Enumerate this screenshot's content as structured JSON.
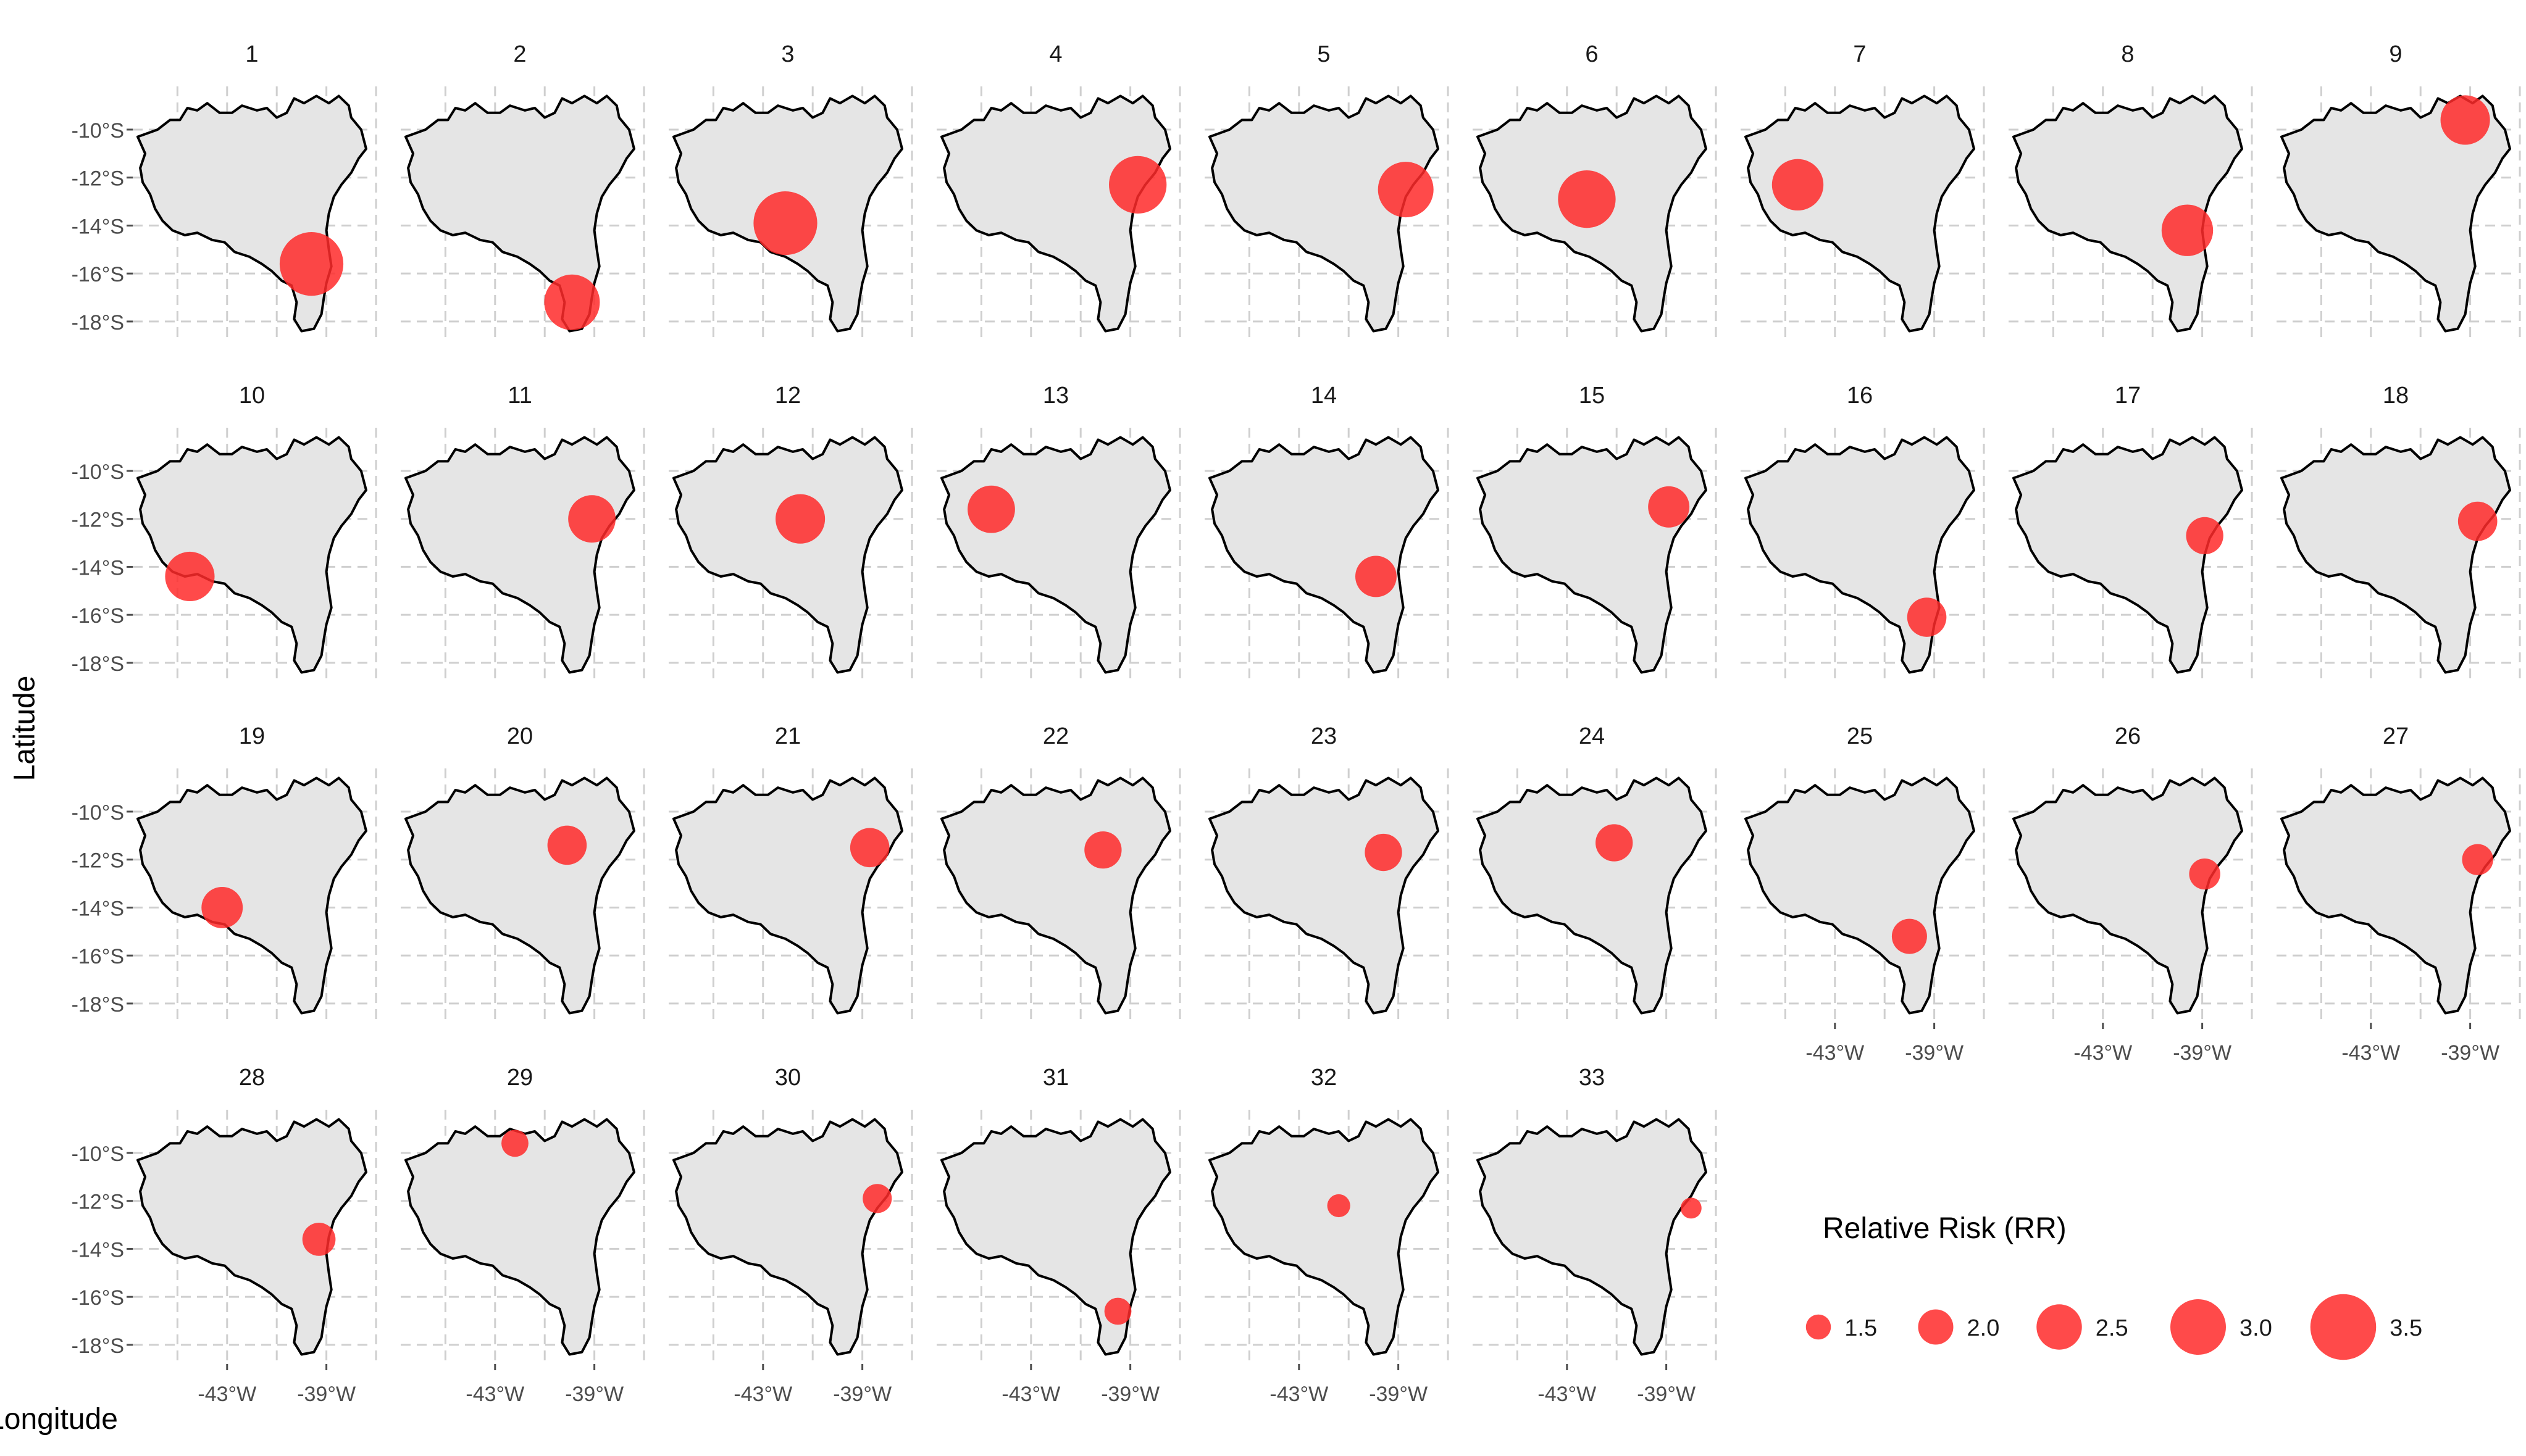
{
  "chart_data": {
    "type": "scatter",
    "subtype": "faceted bubble map",
    "xlabel": "Longitude",
    "ylabel": "Latitude",
    "x_ticks": [
      "-43°W",
      "-39°W"
    ],
    "y_ticks": [
      "-10°S",
      "-12°S",
      "-14°S",
      "-16°S",
      "-18°S"
    ],
    "xlim": [
      -46.8,
      -37.2
    ],
    "ylim": [
      -18.8,
      -8.2
    ],
    "grid": true,
    "point_color": "#ff2a2a",
    "map_fill": "#e5e5e5",
    "legend": {
      "title": "Relative Risk (RR)",
      "placement": "bottom-right",
      "values": [
        1.5,
        2.0,
        2.5,
        3.0,
        3.5
      ],
      "labels": [
        "1.5",
        "2.0",
        "2.5",
        "3.0",
        "3.5"
      ]
    },
    "panels": [
      {
        "label": "1",
        "lon": -39.6,
        "lat": -15.6,
        "rr": 3.4
      },
      {
        "label": "2",
        "lon": -39.9,
        "lat": -17.2,
        "rr": 3.0
      },
      {
        "label": "3",
        "lon": -42.1,
        "lat": -13.9,
        "rr": 3.4
      },
      {
        "label": "4",
        "lon": -38.7,
        "lat": -12.3,
        "rr": 3.1
      },
      {
        "label": "5",
        "lon": -38.7,
        "lat": -12.5,
        "rr": 3.0
      },
      {
        "label": "6",
        "lon": -42.2,
        "lat": -12.9,
        "rr": 3.1
      },
      {
        "label": "7",
        "lon": -44.5,
        "lat": -12.3,
        "rr": 2.8
      },
      {
        "label": "8",
        "lon": -39.6,
        "lat": -14.2,
        "rr": 2.8
      },
      {
        "label": "9",
        "lon": -39.2,
        "lat": -9.6,
        "rr": 2.7
      },
      {
        "label": "10",
        "lon": -44.5,
        "lat": -14.4,
        "rr": 2.7
      },
      {
        "label": "11",
        "lon": -39.1,
        "lat": -12.0,
        "rr": 2.6
      },
      {
        "label": "12",
        "lon": -41.5,
        "lat": -12.0,
        "rr": 2.7
      },
      {
        "label": "13",
        "lon": -44.6,
        "lat": -11.6,
        "rr": 2.6
      },
      {
        "label": "14",
        "lon": -39.9,
        "lat": -14.4,
        "rr": 2.3
      },
      {
        "label": "15",
        "lon": -38.9,
        "lat": -11.5,
        "rr": 2.3
      },
      {
        "label": "16",
        "lon": -39.3,
        "lat": -16.1,
        "rr": 2.2
      },
      {
        "label": "17",
        "lon": -38.9,
        "lat": -12.7,
        "rr": 2.1
      },
      {
        "label": "18",
        "lon": -38.7,
        "lat": -12.1,
        "rr": 2.2
      },
      {
        "label": "19",
        "lon": -43.2,
        "lat": -14.0,
        "rr": 2.3
      },
      {
        "label": "20",
        "lon": -40.1,
        "lat": -11.4,
        "rr": 2.2
      },
      {
        "label": "21",
        "lon": -38.7,
        "lat": -11.5,
        "rr": 2.2
      },
      {
        "label": "22",
        "lon": -40.1,
        "lat": -11.6,
        "rr": 2.1
      },
      {
        "label": "23",
        "lon": -39.6,
        "lat": -11.7,
        "rr": 2.1
      },
      {
        "label": "24",
        "lon": -41.1,
        "lat": -11.3,
        "rr": 2.1
      },
      {
        "label": "25",
        "lon": -40.0,
        "lat": -15.2,
        "rr": 2.0
      },
      {
        "label": "26",
        "lon": -38.9,
        "lat": -12.6,
        "rr": 1.8
      },
      {
        "label": "27",
        "lon": -38.7,
        "lat": -12.0,
        "rr": 1.8
      },
      {
        "label": "28",
        "lon": -39.3,
        "lat": -13.6,
        "rr": 1.9
      },
      {
        "label": "29",
        "lon": -42.2,
        "lat": -9.6,
        "rr": 1.6
      },
      {
        "label": "30",
        "lon": -38.4,
        "lat": -11.9,
        "rr": 1.7
      },
      {
        "label": "31",
        "lon": -39.5,
        "lat": -16.6,
        "rr": 1.6
      },
      {
        "label": "32",
        "lon": -41.4,
        "lat": -12.2,
        "rr": 1.4
      },
      {
        "label": "33",
        "lon": -38.0,
        "lat": -12.3,
        "rr": 1.3
      }
    ]
  }
}
